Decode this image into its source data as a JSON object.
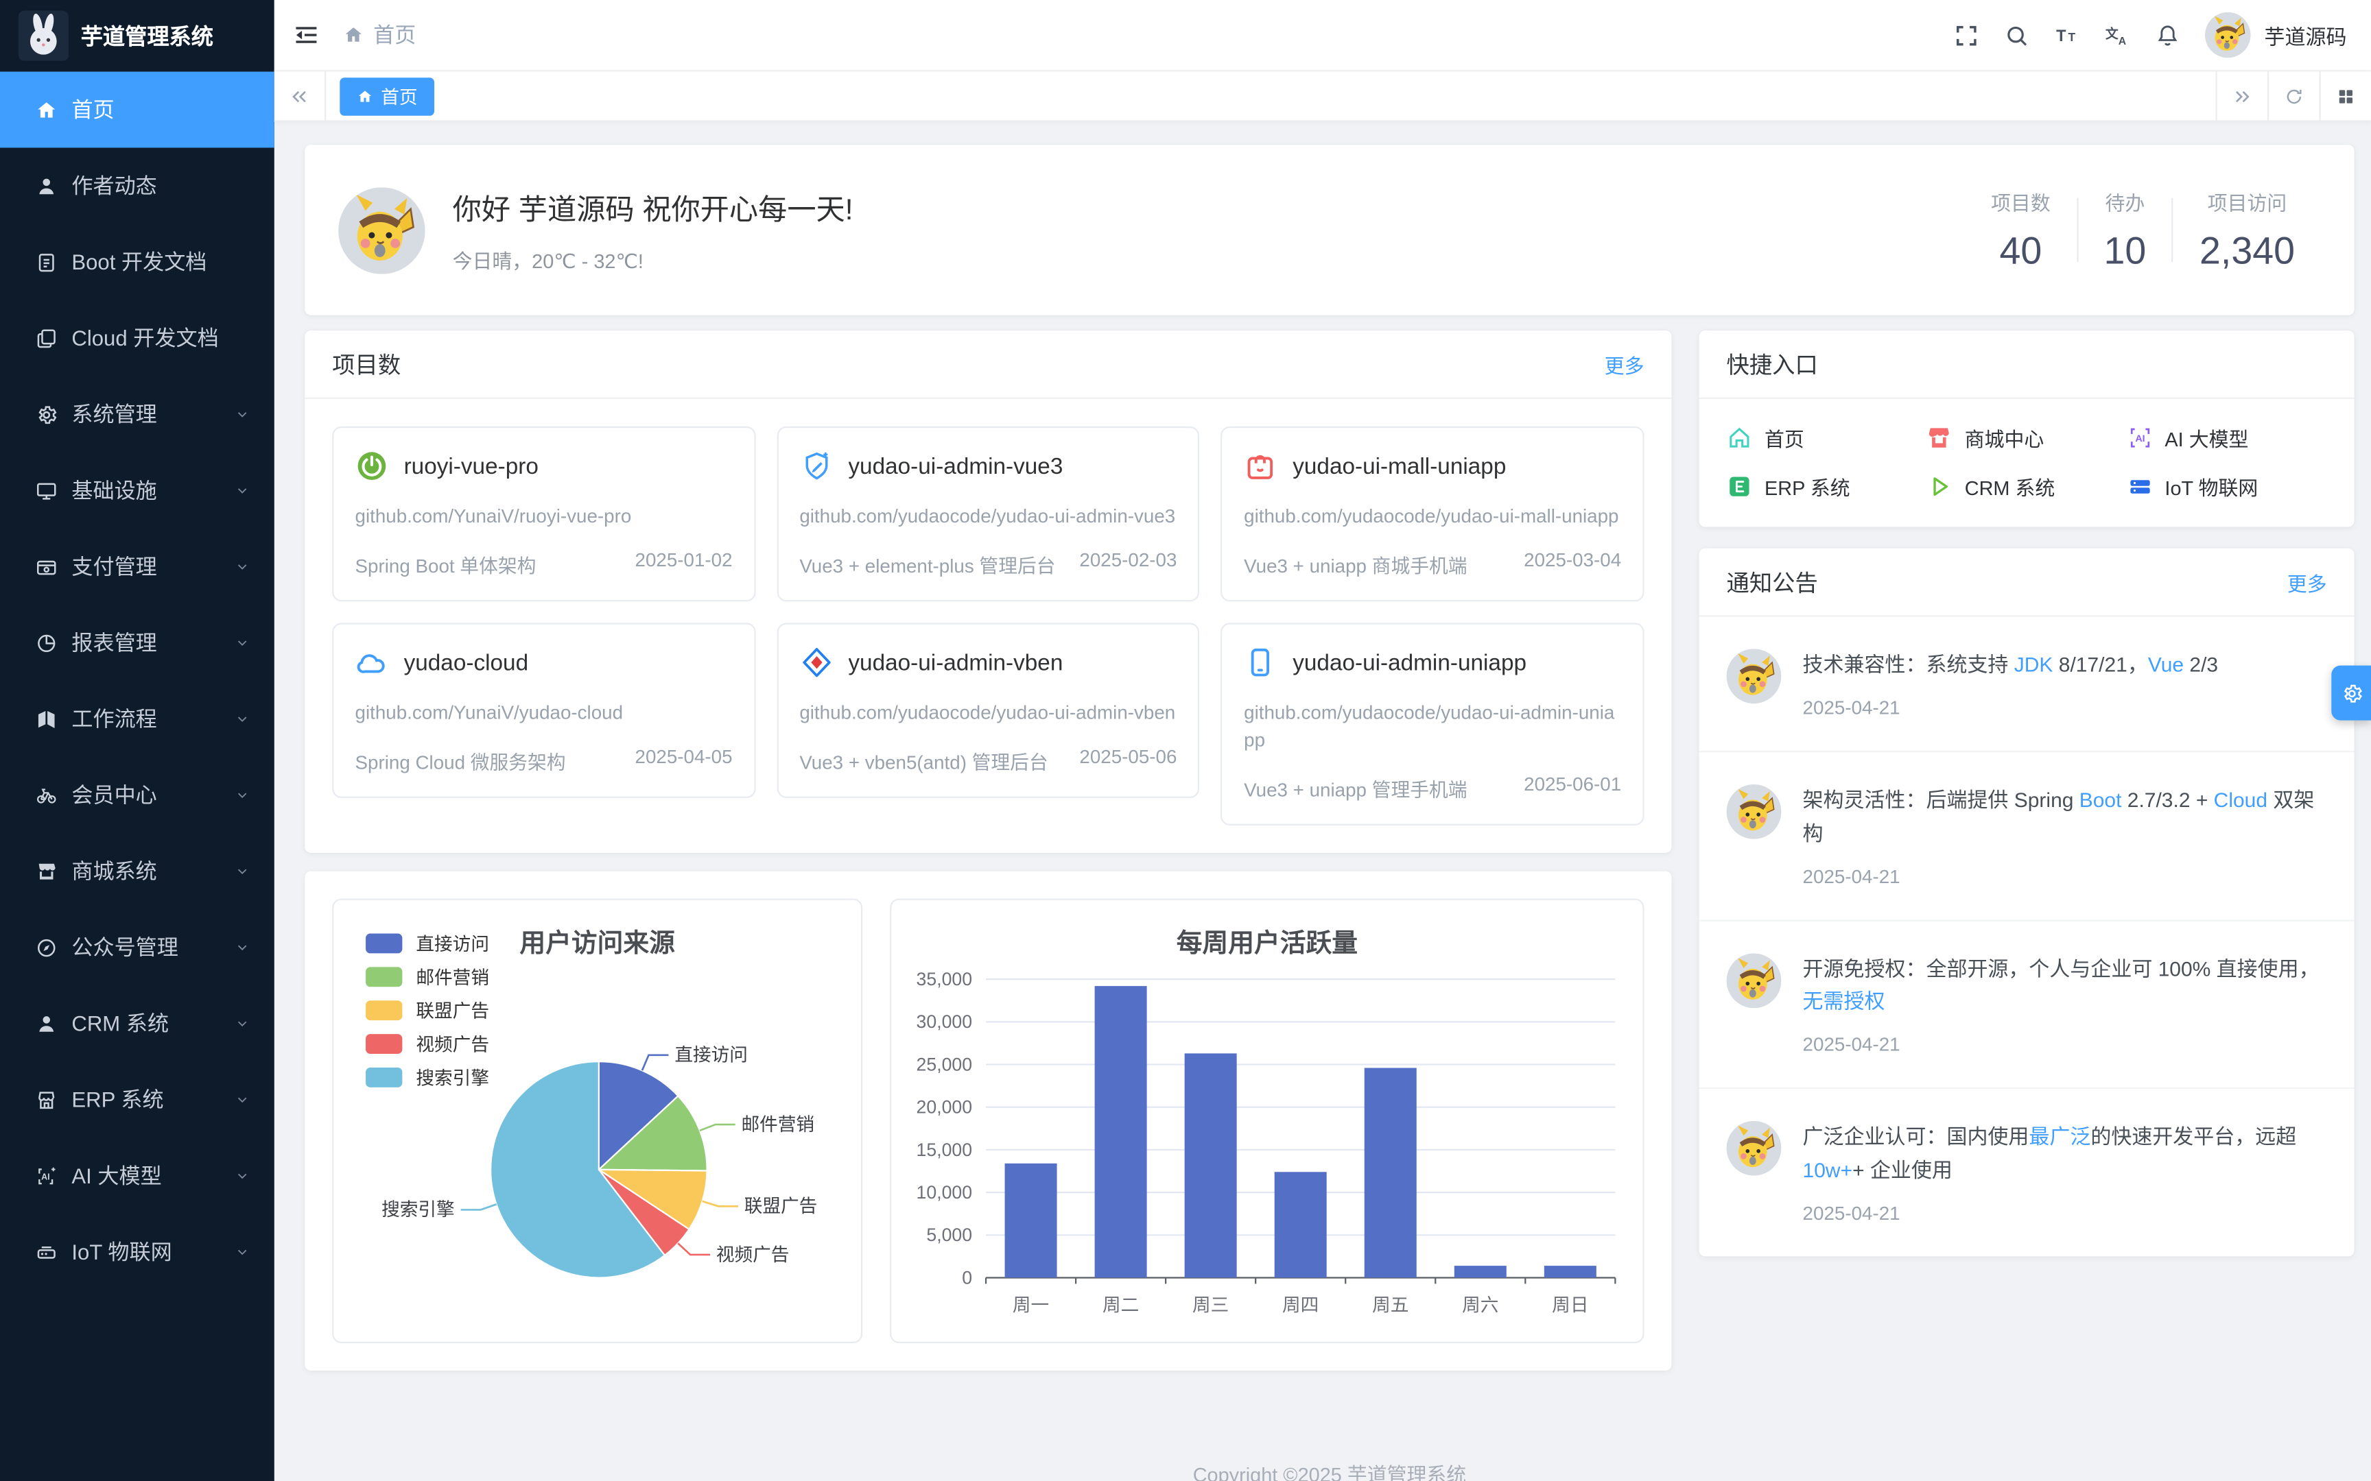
{
  "app": {
    "copyright": "Copyright ©2025 芋道管理系统"
  },
  "colors": {
    "primary": "#409eff",
    "sidebar_bg": "#0d1b2b",
    "content_bg": "#f0f2f5",
    "bar_color": "#5470c6",
    "pie_palette": [
      "#5470c6",
      "#91cc75",
      "#fac858",
      "#ee6666",
      "#73c0de"
    ]
  },
  "sidebar": {
    "logo_title": "芋道管理系统",
    "items": [
      {
        "label": "首页",
        "icon": "home-icon",
        "active": true,
        "expandable": false
      },
      {
        "label": "作者动态",
        "icon": "user-icon",
        "active": false,
        "expandable": false
      },
      {
        "label": "Boot 开发文档",
        "icon": "document-icon",
        "active": false,
        "expandable": false
      },
      {
        "label": "Cloud 开发文档",
        "icon": "documents-icon",
        "active": false,
        "expandable": false
      },
      {
        "label": "系统管理",
        "icon": "gear-icon",
        "active": false,
        "expandable": true
      },
      {
        "label": "基础设施",
        "icon": "monitor-icon",
        "active": false,
        "expandable": true
      },
      {
        "label": "支付管理",
        "icon": "wallet-icon",
        "active": false,
        "expandable": true
      },
      {
        "label": "报表管理",
        "icon": "pie-chart-icon",
        "active": false,
        "expandable": true
      },
      {
        "label": "工作流程",
        "icon": "workflow-icon",
        "active": false,
        "expandable": true
      },
      {
        "label": "会员中心",
        "icon": "bicycle-icon",
        "active": false,
        "expandable": true
      },
      {
        "label": "商城系统",
        "icon": "shop-icon",
        "active": false,
        "expandable": true
      },
      {
        "label": "公众号管理",
        "icon": "compass-icon",
        "active": false,
        "expandable": true
      },
      {
        "label": "CRM 系统",
        "icon": "customer-icon",
        "active": false,
        "expandable": true
      },
      {
        "label": "ERP 系统",
        "icon": "storefront-icon",
        "active": false,
        "expandable": true
      },
      {
        "label": "AI 大模型",
        "icon": "ai-icon",
        "active": false,
        "expandable": true
      },
      {
        "label": "IoT 物联网",
        "icon": "iot-icon",
        "active": false,
        "expandable": true
      }
    ]
  },
  "navbar": {
    "breadcrumb_home": "首页",
    "username": "芋道源码"
  },
  "tabbar": {
    "tabs": [
      {
        "label": "首页",
        "active": true
      }
    ]
  },
  "greeting": {
    "title": "你好 芋道源码 祝你开心每一天!",
    "subtitle": "今日晴，20℃ - 32℃!",
    "stats": [
      {
        "label": "项目数",
        "value": "40"
      },
      {
        "label": "待办",
        "value": "10"
      },
      {
        "label": "项目访问",
        "value": "2,340"
      }
    ]
  },
  "projects": {
    "title": "项目数",
    "more_label": "更多",
    "cards": [
      {
        "name": "ruoyi-vue-pro",
        "icon": "springboot-icon",
        "url": "github.com/YunaiV/ruoyi-vue-pro",
        "desc": "Spring Boot 单体架构",
        "date": "2025-01-02"
      },
      {
        "name": "yudao-ui-admin-vue3",
        "icon": "vue3-icon",
        "url": "github.com/yudaocode/yudao-ui-admin-vue3",
        "desc": "Vue3 + element-plus 管理后台",
        "date": "2025-02-03"
      },
      {
        "name": "yudao-ui-mall-uniapp",
        "icon": "mall-bag-icon",
        "url": "github.com/yudaocode/yudao-ui-mall-uniapp",
        "desc": "Vue3 + uniapp 商城手机端",
        "date": "2025-03-04"
      },
      {
        "name": "yudao-cloud",
        "icon": "cloud-icon",
        "url": "github.com/YunaiV/yudao-cloud",
        "desc": "Spring Cloud 微服务架构",
        "date": "2025-04-05"
      },
      {
        "name": "yudao-ui-admin-vben",
        "icon": "vben-icon",
        "url": "github.com/yudaocode/yudao-ui-admin-vben",
        "desc": "Vue3 + vben5(antd) 管理后台",
        "date": "2025-05-06"
      },
      {
        "name": "yudao-ui-admin-uniapp",
        "icon": "mobile-icon",
        "url": "github.com/yudaocode/yudao-ui-admin-uniapp",
        "desc": "Vue3 + uniapp 管理手机端",
        "date": "2025-06-01"
      }
    ]
  },
  "shortcuts": {
    "title": "快捷入口",
    "items": [
      {
        "label": "首页",
        "icon": "home-outline-icon",
        "color": "#3fd2c0"
      },
      {
        "label": "商城中心",
        "icon": "mall-icon",
        "color": "#f56c6c"
      },
      {
        "label": "AI 大模型",
        "icon": "ai-badge-icon",
        "color": "#8b5cf6"
      },
      {
        "label": "ERP 系统",
        "icon": "erp-icon",
        "color": "#2eb872"
      },
      {
        "label": "CRM 系统",
        "icon": "crm-icon",
        "color": "#67c23a"
      },
      {
        "label": "IoT 物联网",
        "icon": "iot-server-icon",
        "color": "#2b6de8"
      }
    ]
  },
  "notices": {
    "title": "通知公告",
    "more_label": "更多",
    "items": [
      {
        "segments": [
          {
            "text": "技术兼容性：系统支持 "
          },
          {
            "text": "JDK",
            "highlight": true
          },
          {
            "text": " 8/17/21，"
          },
          {
            "text": "Vue",
            "highlight": true
          },
          {
            "text": " 2/3"
          }
        ],
        "date": "2025-04-21"
      },
      {
        "segments": [
          {
            "text": "架构灵活性：后端提供 Spring "
          },
          {
            "text": "Boot",
            "highlight": true
          },
          {
            "text": " 2.7/3.2 + "
          },
          {
            "text": "Cloud",
            "highlight": true
          },
          {
            "text": " 双架构"
          }
        ],
        "date": "2025-04-21"
      },
      {
        "segments": [
          {
            "text": "开源免授权：全部开源，个人与企业可 100% 直接使用，"
          },
          {
            "text": "无需授权",
            "highlight": true
          }
        ],
        "date": "2025-04-21"
      },
      {
        "segments": [
          {
            "text": "广泛企业认可：国内使用"
          },
          {
            "text": "最广泛",
            "highlight": true
          },
          {
            "text": "的快速开发平台，远超 "
          },
          {
            "text": "10w+",
            "highlight": true
          },
          {
            "text": "+ 企业使用"
          }
        ],
        "date": "2025-04-21"
      }
    ]
  },
  "chart_data": [
    {
      "type": "pie",
      "title": "用户访问来源",
      "legend_position": "top-left",
      "labels": [
        "直接访问",
        "邮件营销",
        "联盟广告",
        "视频广告",
        "搜索引擎"
      ],
      "values": [
        335,
        310,
        234,
        135,
        1548
      ],
      "percentages_approx": [
        13.1,
        12.1,
        9.1,
        5.3,
        60.4
      ],
      "colors": [
        "#5470c6",
        "#91cc75",
        "#fac858",
        "#ee6666",
        "#73c0de"
      ],
      "labels_outside": true
    },
    {
      "type": "bar",
      "title": "每周用户活跃量",
      "categories": [
        "周一",
        "周二",
        "周三",
        "周四",
        "周五",
        "周六",
        "周日"
      ],
      "values": [
        13400,
        34200,
        26300,
        12400,
        24600,
        1400,
        1400
      ],
      "xlabel": "",
      "ylabel": "",
      "ylim": [
        0,
        35000
      ],
      "ytick_step": 5000,
      "bar_color": "#5470c6",
      "grid": true,
      "legend": false
    }
  ]
}
